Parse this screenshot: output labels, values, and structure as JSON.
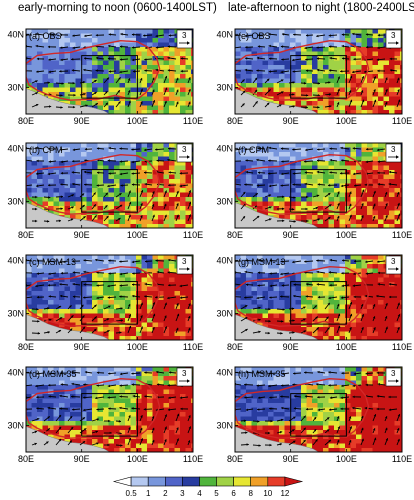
{
  "columns": [
    {
      "title": "early-morning to noon (0600-1400LST)"
    },
    {
      "title": "late-afternoon to night (1800-2400LST)"
    }
  ],
  "panels": [
    {
      "label": "(a) OBS",
      "col": 0,
      "row": 0,
      "intensity": 0.35
    },
    {
      "label": "(b) CPM",
      "col": 0,
      "row": 1,
      "intensity": 0.55
    },
    {
      "label": "(c) MSM-13",
      "col": 0,
      "row": 2,
      "intensity": 0.85
    },
    {
      "label": "(d) MSM-35",
      "col": 0,
      "row": 3,
      "intensity": 0.9
    },
    {
      "label": "(e) OBS",
      "col": 1,
      "row": 0,
      "intensity": 0.65
    },
    {
      "label": "(f) CPM",
      "col": 1,
      "row": 1,
      "intensity": 0.75
    },
    {
      "label": "(g) MSM-13",
      "col": 1,
      "row": 2,
      "intensity": 0.95
    },
    {
      "label": "(h) MSM-35",
      "col": 1,
      "row": 3,
      "intensity": 1.0
    }
  ],
  "axes": {
    "x_ticks": [
      "80E",
      "90E",
      "100E",
      "110E"
    ],
    "y_ticks": [
      "40N",
      "30N"
    ],
    "lon_range": [
      80,
      110
    ],
    "lat_range": [
      25,
      41
    ]
  },
  "reference_vector": {
    "value": "3"
  },
  "colorbar": {
    "levels": [
      "0.5",
      "1",
      "2",
      "3",
      "4",
      "5",
      "6",
      "8",
      "10",
      "12"
    ],
    "colors": [
      "#ffffff",
      "#b4c8f0",
      "#7896dc",
      "#5064c8",
      "#283ca0",
      "#50b43c",
      "#a0d246",
      "#e6e632",
      "#f0a028",
      "#e63c28",
      "#c81414"
    ]
  },
  "colors": {
    "plateau_outline": "#d22828",
    "land_gray": "#c8c8c8",
    "box": "#000000"
  }
}
